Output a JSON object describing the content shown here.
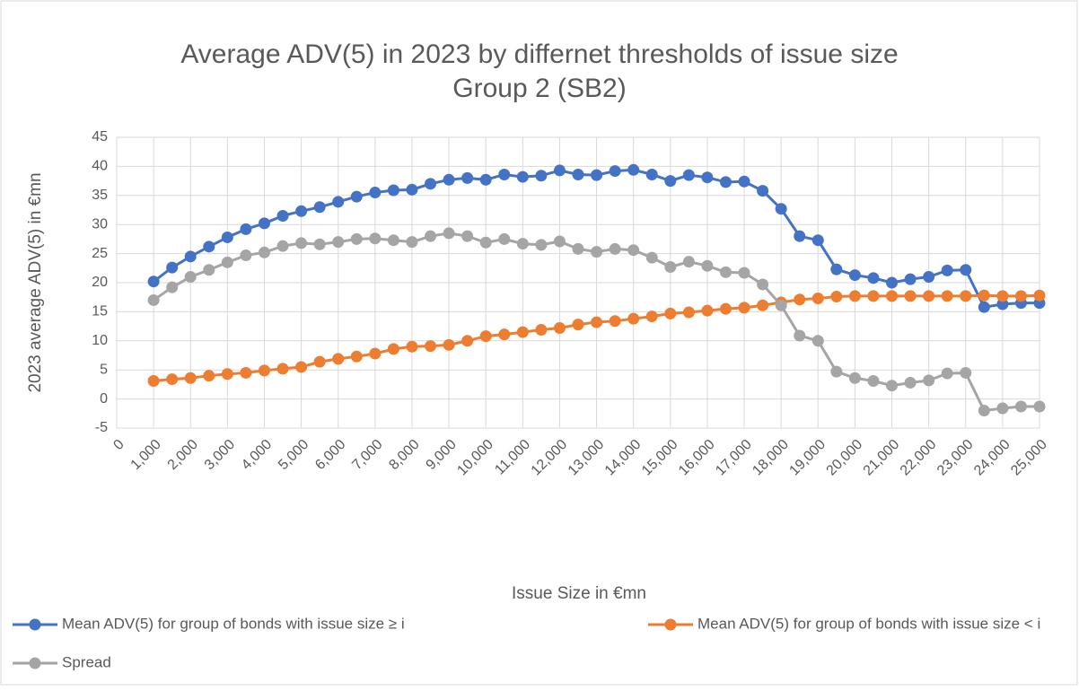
{
  "chart_data": {
    "type": "line",
    "title": "Average ADV(5) in 2023 by differnet thresholds of issue size",
    "subtitle": "Group 2 (SB2)",
    "x_label": "Issue Size in €mn",
    "y_label": "2023 average ADV(5) in €mn",
    "x": [
      1000,
      1500,
      2000,
      2500,
      3000,
      3500,
      4000,
      4500,
      5000,
      5500,
      6000,
      6500,
      7000,
      7500,
      8000,
      8500,
      9000,
      9500,
      10000,
      10500,
      11000,
      11500,
      12000,
      12500,
      13000,
      13500,
      14000,
      14500,
      15000,
      15500,
      16000,
      16500,
      17000,
      17500,
      18000,
      18500,
      19000,
      19500,
      20000,
      20500,
      21000,
      21500,
      22000,
      22500,
      23000,
      23500,
      24000,
      24500,
      25000
    ],
    "series": [
      {
        "name": "Mean ADV(5) for group of bonds with issue size ≥ i",
        "color": "#4472c4",
        "values": [
          20.2,
          22.6,
          24.5,
          26.2,
          27.8,
          29.2,
          30.2,
          31.5,
          32.3,
          33.0,
          33.9,
          34.8,
          35.5,
          35.9,
          36.0,
          37.0,
          37.7,
          38.0,
          37.7,
          38.6,
          38.2,
          38.4,
          39.3,
          38.6,
          38.5,
          39.2,
          39.4,
          38.6,
          37.5,
          38.5,
          38.1,
          37.3,
          37.4,
          35.8,
          32.7,
          28.0,
          27.3,
          22.3,
          21.3,
          20.8,
          20.0,
          20.6,
          21.0,
          22.1,
          22.2,
          15.8,
          16.3,
          16.5,
          16.5
        ]
      },
      {
        "name": "Mean ADV(5) for group of bonds with issue size < i",
        "color": "#ed7d31",
        "values": [
          3.1,
          3.4,
          3.6,
          4.0,
          4.3,
          4.5,
          4.9,
          5.2,
          5.5,
          6.4,
          6.9,
          7.3,
          7.8,
          8.6,
          9.0,
          9.1,
          9.3,
          10.0,
          10.8,
          11.1,
          11.5,
          11.9,
          12.2,
          12.8,
          13.2,
          13.4,
          13.8,
          14.2,
          14.7,
          14.9,
          15.2,
          15.5,
          15.7,
          16.1,
          16.6,
          17.1,
          17.3,
          17.6,
          17.7,
          17.7,
          17.7,
          17.7,
          17.7,
          17.7,
          17.7,
          17.8,
          17.7,
          17.7,
          17.8
        ]
      },
      {
        "name": "Spread",
        "color": "#a5a5a5",
        "values": [
          17.0,
          19.2,
          21.0,
          22.2,
          23.5,
          24.7,
          25.2,
          26.3,
          26.8,
          26.6,
          27.0,
          27.5,
          27.6,
          27.3,
          27.0,
          28.0,
          28.5,
          28.0,
          26.9,
          27.5,
          26.7,
          26.5,
          27.1,
          25.8,
          25.3,
          25.8,
          25.6,
          24.3,
          22.7,
          23.6,
          22.9,
          21.8,
          21.7,
          19.7,
          16.1,
          10.9,
          10.0,
          4.7,
          3.6,
          3.1,
          2.3,
          2.8,
          3.2,
          4.4,
          4.5,
          -2.0,
          -1.6,
          -1.3,
          -1.3
        ]
      }
    ],
    "xlim": [
      0,
      25000
    ],
    "xticks": [
      0,
      {
        "value": 1000,
        "label": "1,000"
      },
      {
        "value": 2000,
        "label": "2,000"
      },
      {
        "value": 3000,
        "label": "3,000"
      },
      {
        "value": 4000,
        "label": "4,000"
      },
      {
        "value": 5000,
        "label": "5,000"
      },
      {
        "value": 6000,
        "label": "6,000"
      },
      {
        "value": 7000,
        "label": "7,000"
      },
      {
        "value": 8000,
        "label": "8,000"
      },
      {
        "value": 9000,
        "label": "9,000"
      },
      {
        "value": 10000,
        "label": "10,000"
      },
      {
        "value": 11000,
        "label": "11,000"
      },
      {
        "value": 12000,
        "label": "12,000"
      },
      {
        "value": 13000,
        "label": "13,000"
      },
      {
        "value": 14000,
        "label": "14,000"
      },
      {
        "value": 15000,
        "label": "15,000"
      },
      {
        "value": 16000,
        "label": "16,000"
      },
      {
        "value": 17000,
        "label": "17,000"
      },
      {
        "value": 18000,
        "label": "18,000"
      },
      {
        "value": 19000,
        "label": "19,000"
      },
      {
        "value": 20000,
        "label": "20,000"
      },
      {
        "value": 21000,
        "label": "21,000"
      },
      {
        "value": 22000,
        "label": "22,000"
      },
      {
        "value": 23000,
        "label": "23,000"
      },
      {
        "value": 24000,
        "label": "24,000"
      },
      {
        "value": 25000,
        "label": "25,000"
      }
    ],
    "ylim": [
      -5,
      45
    ],
    "yticks": [
      -5,
      0,
      5,
      10,
      15,
      20,
      25,
      30,
      35,
      40,
      45
    ],
    "grid": true
  }
}
